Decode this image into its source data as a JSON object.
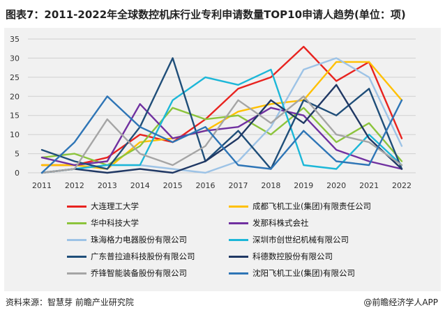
{
  "title": "图表7：2011-2022年全球数控机床行业专利申请数量TOP10申请人趋势(单位：项)",
  "source": "资料来源：智慧芽 前瞻产业研究院",
  "credit": "@前瞻经济学人APP",
  "chart_data": {
    "type": "line",
    "title": "图表7：2011-2022年全球数控机床行业专利申请数量TOP10申请人趋势(单位：项)",
    "xlabel": "",
    "ylabel": "",
    "x": [
      "2011",
      "2012",
      "2013",
      "2014",
      "2015",
      "2016",
      "2017",
      "2018",
      "2019",
      "2020",
      "2021",
      "2022"
    ],
    "ylim": [
      0,
      35
    ],
    "yticks": [
      0,
      5,
      10,
      15,
      20,
      25,
      30,
      35
    ],
    "grid": true,
    "legend_position": "bottom",
    "series": [
      {
        "name": "大连理工大学",
        "color": "#e8231f",
        "values": [
          2,
          2,
          4,
          10,
          8,
          14,
          22,
          25,
          33,
          24,
          29,
          9
        ]
      },
      {
        "name": "成都飞机工业(集团)有限责任公司",
        "color": "#ffc000",
        "values": [
          2,
          2,
          1,
          8,
          9,
          11,
          16,
          18,
          19,
          29,
          29,
          19
        ]
      },
      {
        "name": "华中科技大学",
        "color": "#8cc43c",
        "values": [
          4,
          5,
          2,
          7,
          17,
          14,
          15,
          10,
          17,
          8,
          13,
          3
        ]
      },
      {
        "name": "发那科株式会社",
        "color": "#7030a0",
        "values": [
          4,
          2,
          3,
          18,
          9,
          11,
          12,
          17,
          15,
          6,
          3,
          1
        ]
      },
      {
        "name": "珠海格力电器股份有限公司",
        "color": "#9dc3e6",
        "values": [
          0,
          1,
          2,
          2,
          1,
          0,
          3,
          12,
          27,
          30,
          25,
          7
        ]
      },
      {
        "name": "深圳市创世纪机械有限公司",
        "color": "#1cb7d8",
        "values": [
          0,
          1,
          2,
          2,
          19,
          25,
          23,
          27,
          2,
          1,
          10,
          2
        ]
      },
      {
        "name": "广东普拉迪科技股份有限公司",
        "color": "#1f4e79",
        "values": [
          6,
          3,
          1,
          12,
          30,
          3,
          11,
          1,
          19,
          15,
          22,
          1
        ]
      },
      {
        "name": "科德数控股份有限公司",
        "color": "#203864",
        "values": [
          0,
          1,
          0,
          1,
          0,
          3,
          9,
          19,
          13,
          23,
          9,
          1
        ]
      },
      {
        "name": "乔锋智能装备股份有限公司",
        "color": "#a5a5a5",
        "values": [
          0,
          1,
          14,
          5,
          2,
          7,
          19,
          13,
          20,
          10,
          8,
          2
        ]
      },
      {
        "name": "沈阳飞机工业(集团)有限公司",
        "color": "#2e75b6",
        "values": [
          0,
          8,
          20,
          12,
          8,
          12,
          2,
          1,
          11,
          3,
          2,
          19
        ]
      }
    ]
  }
}
